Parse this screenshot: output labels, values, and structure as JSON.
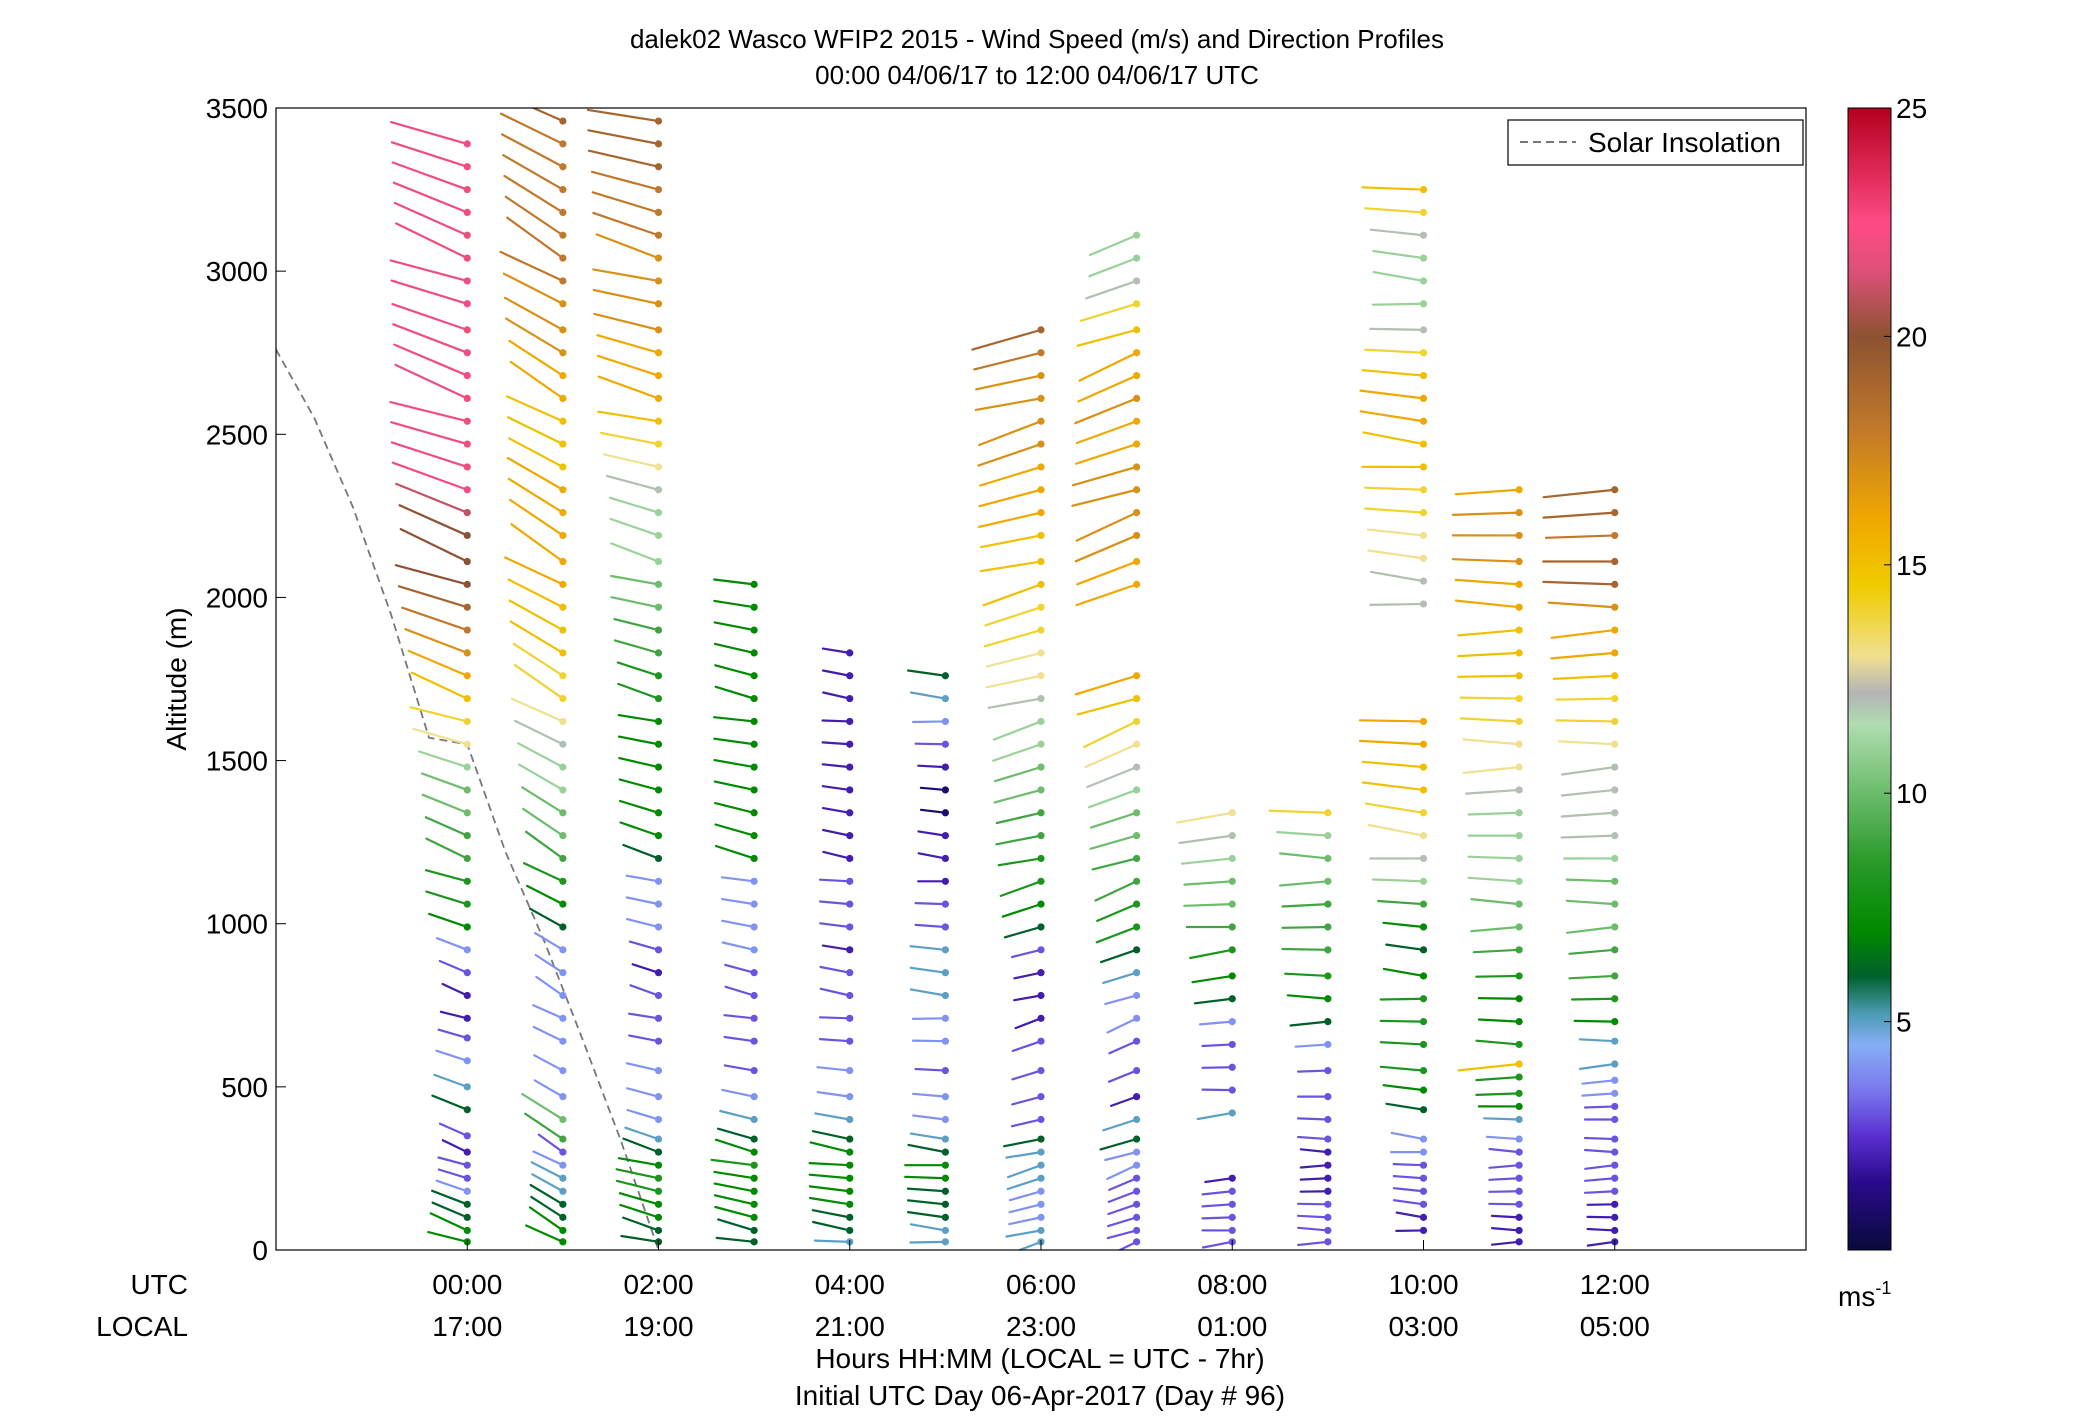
{
  "chart_data": {
    "type": "wind_barb_profile",
    "title": "dalek02 Wasco WFIP2 2015 - Wind Speed (m/s) and Direction Profiles",
    "subtitle": "00:00 04/06/17 to 12:00 04/06/17  UTC",
    "ylabel": "Altitude (m)",
    "xlabel": "Hours HH:MM  (LOCAL = UTC - 7hr)",
    "xlabel2": "Initial UTC Day 06-Apr-2017 (Day # 96)",
    "row_label_utc": "UTC",
    "row_label_local": "LOCAL",
    "xlim_hours": [
      -2.0,
      14.0
    ],
    "ylim": [
      0,
      3500
    ],
    "y_ticks": [
      "0",
      "500",
      "1000",
      "1500",
      "2000",
      "2500",
      "3000",
      "3500"
    ],
    "x_ticks_utc": [
      "00:00",
      "02:00",
      "04:00",
      "06:00",
      "08:00",
      "10:00",
      "12:00"
    ],
    "x_ticks_local": [
      "17:00",
      "19:00",
      "21:00",
      "23:00",
      "01:00",
      "03:00",
      "05:00"
    ],
    "legend": {
      "label": "Solar Insolation",
      "position": "top-right",
      "style": "dashed gray"
    },
    "colorbar": {
      "range": [
        0,
        25
      ],
      "ticks": [
        "5",
        "10",
        "15",
        "20",
        "25"
      ],
      "unit": "ms",
      "unit_exp": "-1",
      "stops": [
        {
          "v": 0,
          "c": "#0a0a3c"
        },
        {
          "v": 1.5,
          "c": "#2a0a8c"
        },
        {
          "v": 2.5,
          "c": "#5a30d0"
        },
        {
          "v": 3.5,
          "c": "#7a78ee"
        },
        {
          "v": 4.5,
          "c": "#86aef6"
        },
        {
          "v": 5.2,
          "c": "#4a9ab0"
        },
        {
          "v": 6.0,
          "c": "#00602a"
        },
        {
          "v": 7.0,
          "c": "#008a00"
        },
        {
          "v": 8.5,
          "c": "#2a9a2a"
        },
        {
          "v": 10.0,
          "c": "#6cbc6c"
        },
        {
          "v": 11.5,
          "c": "#b0dcb0"
        },
        {
          "v": 12.2,
          "c": "#b4b4b4"
        },
        {
          "v": 13.0,
          "c": "#f0e090"
        },
        {
          "v": 14.5,
          "c": "#f0cc00"
        },
        {
          "v": 16.0,
          "c": "#f0a800"
        },
        {
          "v": 18.0,
          "c": "#c0782a"
        },
        {
          "v": 20.0,
          "c": "#8c5232"
        },
        {
          "v": 21.5,
          "c": "#e0507a"
        },
        {
          "v": 22.5,
          "c": "#ff4a84"
        },
        {
          "v": 25.0,
          "c": "#b4001e"
        }
      ]
    },
    "solar_insolation_curve": [
      {
        "hour": -2.0,
        "alt": 2760
      },
      {
        "hour": -1.6,
        "alt": 2550
      },
      {
        "hour": -1.2,
        "alt": 2280
      },
      {
        "hour": -0.8,
        "alt": 1950
      },
      {
        "hour": -0.4,
        "alt": 1570
      },
      {
        "hour": 0.0,
        "alt": 1550
      },
      {
        "hour": 0.4,
        "alt": 1220
      },
      {
        "hour": 0.8,
        "alt": 950
      },
      {
        "hour": 1.2,
        "alt": 650
      },
      {
        "hour": 1.6,
        "alt": 340
      },
      {
        "hour": 2.0,
        "alt": 0
      }
    ],
    "profiles": [
      {
        "hour": 0.0,
        "alts": [
          25,
          60,
          100,
          140,
          180,
          220,
          260,
          300,
          350,
          430,
          500,
          580,
          650,
          710,
          780,
          850,
          920,
          990,
          1060,
          1130,
          1200,
          1270,
          1340,
          1410,
          1480,
          1550,
          1620,
          1690,
          1760,
          1830,
          1900,
          1970,
          2040,
          2110,
          2190,
          2260,
          2330,
          2400,
          2470,
          2540,
          2610,
          2680,
          2750,
          2820,
          2900,
          2970,
          3040,
          3110,
          3180,
          3250,
          3320,
          3390
        ],
        "dir": 290,
        "spd": [
          7,
          7,
          6,
          6,
          4,
          3,
          3,
          2,
          3,
          6,
          5,
          4,
          3,
          2,
          2,
          3,
          4,
          7,
          8,
          8,
          9,
          9,
          10,
          10,
          11,
          13,
          14,
          15,
          16,
          17,
          18,
          19,
          20,
          20,
          20,
          21,
          22,
          22,
          22,
          22,
          22,
          22,
          22,
          22,
          22,
          22,
          22,
          22,
          22,
          22,
          22,
          22
        ]
      },
      {
        "hour": 1.0,
        "alts": [
          25,
          60,
          100,
          140,
          180,
          220,
          260,
          300,
          340,
          400,
          470,
          550,
          640,
          710,
          780,
          850,
          920,
          990,
          1060,
          1130,
          1200,
          1270,
          1340,
          1410,
          1480,
          1550,
          1620,
          1690,
          1760,
          1830,
          1900,
          1970,
          2040,
          2110,
          2190,
          2260,
          2330,
          2400,
          2470,
          2540,
          2610,
          2680,
          2750,
          2820,
          2900,
          2970,
          3040,
          3110,
          3180,
          3250,
          3320,
          3390,
          3460
        ],
        "dir": 300,
        "spd": [
          7,
          7,
          6,
          6,
          5,
          5,
          4,
          3,
          9,
          10,
          4,
          4,
          4,
          4,
          4,
          4,
          4,
          6,
          7,
          8,
          9,
          10,
          10,
          11,
          11,
          12,
          13,
          14,
          14,
          15,
          15,
          15,
          16,
          16,
          16,
          16,
          16,
          15,
          15,
          15,
          16,
          16,
          17,
          17,
          17,
          18,
          18,
          18,
          18,
          18,
          18,
          18,
          19
        ]
      },
      {
        "hour": 2.0,
        "alts": [
          25,
          60,
          100,
          140,
          180,
          220,
          260,
          300,
          340,
          400,
          470,
          550,
          640,
          710,
          780,
          850,
          920,
          990,
          1060,
          1130,
          1200,
          1270,
          1340,
          1410,
          1480,
          1550,
          1620,
          1690,
          1760,
          1830,
          1900,
          1970,
          2040,
          2110,
          2190,
          2260,
          2330,
          2400,
          2470,
          2540,
          2610,
          2680,
          2750,
          2820,
          2900,
          2970,
          3040,
          3110,
          3180,
          3250,
          3320,
          3390,
          3460
        ],
        "dir": 285,
        "spd": [
          6,
          6,
          7,
          7,
          8,
          8,
          7,
          6,
          5,
          4,
          4,
          4,
          3,
          3,
          3,
          2,
          3,
          4,
          4,
          4,
          6,
          7,
          7,
          7,
          7,
          7,
          7,
          8,
          8,
          9,
          9,
          10,
          10,
          11,
          11,
          11,
          12,
          13,
          14,
          15,
          16,
          16,
          16,
          17,
          17,
          17,
          17,
          18,
          18,
          18,
          19,
          19,
          19
        ]
      },
      {
        "hour": 3.0,
        "alts": [
          25,
          60,
          100,
          140,
          180,
          220,
          260,
          300,
          340,
          400,
          470,
          550,
          640,
          710,
          780,
          850,
          920,
          990,
          1060,
          1130,
          1200,
          1270,
          1340,
          1410,
          1480,
          1550,
          1620,
          1690,
          1760,
          1830,
          1900,
          1970,
          2040
        ],
        "dir": 282,
        "spd": [
          6,
          6,
          7,
          7,
          7,
          7,
          8,
          7,
          6,
          5,
          4,
          3,
          3,
          3,
          3,
          3,
          4,
          4,
          4,
          4,
          7,
          7,
          7,
          7,
          7,
          7,
          7,
          7,
          7,
          7,
          7,
          7,
          7
        ]
      },
      {
        "hour": 4.0,
        "alts": [
          25,
          60,
          100,
          140,
          180,
          220,
          260,
          300,
          340,
          400,
          470,
          550,
          640,
          710,
          780,
          850,
          920,
          990,
          1060,
          1130,
          1200,
          1270,
          1340,
          1410,
          1480,
          1550,
          1620,
          1690,
          1760,
          1830
        ],
        "dir": 278,
        "spd": [
          5,
          6,
          6,
          7,
          7,
          7,
          7,
          7,
          6,
          5,
          4,
          4,
          3,
          3,
          3,
          3,
          2,
          3,
          3,
          3,
          2,
          2,
          2,
          2,
          2,
          2,
          2,
          2,
          2,
          2
        ]
      },
      {
        "hour": 5.0,
        "alts": [
          25,
          60,
          100,
          140,
          180,
          220,
          260,
          300,
          340,
          400,
          470,
          550,
          640,
          710,
          780,
          850,
          920,
          990,
          1060,
          1130,
          1200,
          1270,
          1340,
          1410,
          1480,
          1550,
          1620,
          1690,
          1760
        ],
        "dir": 275,
        "spd": [
          5,
          5,
          6,
          6,
          6,
          7,
          7,
          6,
          5,
          4,
          4,
          3,
          4,
          4,
          5,
          5,
          5,
          3,
          3,
          2,
          2,
          2,
          1,
          1,
          2,
          3,
          4,
          5,
          6
        ]
      },
      {
        "hour": 6.0,
        "alts": [
          25,
          60,
          100,
          140,
          180,
          220,
          260,
          300,
          340,
          400,
          470,
          550,
          640,
          710,
          780,
          850,
          920,
          990,
          1060,
          1130,
          1200,
          1270,
          1340,
          1410,
          1480,
          1550,
          1620,
          1690,
          1760,
          1830,
          1900,
          1970,
          2040,
          2110,
          2190,
          2260,
          2330,
          2400,
          2470,
          2540,
          2610,
          2680,
          2750,
          2820
        ],
        "dir": 255,
        "spd": [
          5,
          5,
          4,
          4,
          4,
          5,
          5,
          5,
          6,
          3,
          3,
          3,
          3,
          2,
          2,
          2,
          3,
          6,
          7,
          8,
          8,
          9,
          9,
          10,
          10,
          11,
          11,
          12,
          13,
          13,
          14,
          14,
          15,
          15,
          15,
          16,
          16,
          16,
          17,
          17,
          17,
          17,
          18,
          19
        ]
      },
      {
        "hour": 7.0,
        "alts": [
          25,
          60,
          100,
          140,
          180,
          220,
          260,
          300,
          340,
          400,
          470,
          550,
          640,
          710,
          780,
          850,
          920,
          990,
          1060,
          1130,
          1200,
          1270,
          1340,
          1410,
          1480,
          1550,
          1620,
          1690,
          1760,
          2040,
          2110,
          2190,
          2260,
          2330,
          2400,
          2470,
          2540,
          2610,
          2680,
          2750,
          2820,
          2900,
          2970,
          3040,
          3110
        ],
        "dir": 250,
        "spd": [
          3,
          3,
          3,
          3,
          3,
          3,
          4,
          4,
          6,
          5,
          2,
          3,
          3,
          4,
          4,
          5,
          6,
          8,
          8,
          9,
          9,
          10,
          10,
          11,
          12,
          13,
          14,
          15,
          16,
          16,
          16,
          17,
          17,
          17,
          17,
          16,
          16,
          17,
          16,
          16,
          15,
          14,
          12,
          11,
          11
        ]
      },
      {
        "hour": 8.0,
        "alts": [
          25,
          60,
          100,
          140,
          180,
          220,
          420,
          490,
          560,
          630,
          700,
          770,
          840,
          920,
          990,
          1060,
          1130,
          1200,
          1270,
          1340
        ],
        "dir": 265,
        "spd": [
          3,
          3,
          3,
          3,
          3,
          2,
          5,
          3,
          3,
          3,
          4,
          6,
          7,
          8,
          9,
          10,
          10,
          11,
          12,
          13
        ]
      },
      {
        "hour": 9.0,
        "alts": [
          25,
          60,
          100,
          140,
          180,
          220,
          260,
          300,
          340,
          400,
          470,
          550,
          630,
          700,
          770,
          840,
          920,
          990,
          1060,
          1130,
          1200,
          1270,
          1340
        ],
        "dir": 270,
        "spd": [
          3,
          3,
          3,
          3,
          2,
          2,
          2,
          2,
          3,
          3,
          3,
          3,
          4,
          6,
          7,
          8,
          9,
          9,
          9,
          10,
          10,
          11,
          14
        ]
      },
      {
        "hour": 10.0,
        "alts": [
          60,
          100,
          140,
          180,
          220,
          260,
          300,
          340,
          430,
          490,
          550,
          630,
          700,
          770,
          840,
          920,
          990,
          1060,
          1130,
          1200,
          1270,
          1340,
          1410,
          1480,
          1550,
          1620,
          1980,
          2050,
          2120,
          2190,
          2260,
          2330,
          2400,
          2470,
          2540,
          2610,
          2680,
          2750,
          2820,
          2900,
          2970,
          3040,
          3110,
          3180,
          3250
        ],
        "dir": 275,
        "spd": [
          2,
          2,
          3,
          3,
          3,
          3,
          4,
          4,
          6,
          7,
          8,
          8,
          8,
          8,
          7,
          6,
          7,
          9,
          11,
          12,
          13,
          14,
          15,
          15,
          16,
          16,
          12,
          12,
          13,
          13,
          14,
          14,
          15,
          15,
          16,
          16,
          15,
          14,
          12,
          11,
          11,
          11,
          12,
          14,
          15
        ]
      },
      {
        "hour": 11.0,
        "alts": [
          25,
          60,
          100,
          140,
          180,
          220,
          260,
          300,
          340,
          400,
          440,
          480,
          530,
          570,
          630,
          700,
          770,
          840,
          920,
          990,
          1060,
          1130,
          1200,
          1270,
          1340,
          1410,
          1480,
          1550,
          1620,
          1690,
          1760,
          1830,
          1900,
          1970,
          2040,
          2110,
          2190,
          2260,
          2330
        ],
        "dir": 270,
        "spd": [
          2,
          2,
          2,
          3,
          3,
          3,
          3,
          3,
          4,
          5,
          7,
          8,
          8,
          15,
          8,
          7,
          7,
          8,
          9,
          10,
          10,
          11,
          11,
          11,
          11,
          12,
          13,
          13,
          14,
          14,
          15,
          15,
          15,
          16,
          16,
          17,
          17,
          17,
          16
        ]
      },
      {
        "hour": 12.0,
        "alts": [
          25,
          60,
          100,
          140,
          180,
          220,
          260,
          300,
          340,
          400,
          440,
          480,
          520,
          570,
          640,
          700,
          770,
          840,
          920,
          990,
          1060,
          1130,
          1200,
          1270,
          1340,
          1410,
          1480,
          1550,
          1620,
          1690,
          1760,
          1830,
          1900,
          1970,
          2040,
          2110,
          2190,
          2260,
          2330
        ],
        "dir": 268,
        "spd": [
          2,
          2,
          2,
          2,
          3,
          3,
          3,
          3,
          3,
          3,
          3,
          4,
          4,
          5,
          5,
          7,
          8,
          9,
          9,
          10,
          10,
          10,
          11,
          12,
          12,
          12,
          12,
          13,
          14,
          14,
          15,
          16,
          16,
          17,
          19,
          19,
          18,
          19,
          19
        ]
      }
    ]
  }
}
